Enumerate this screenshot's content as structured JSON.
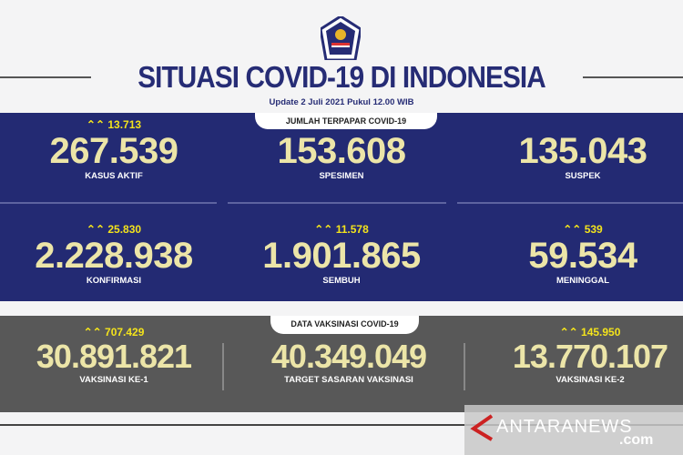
{
  "header": {
    "title": "SITUASI COVID-19 DI INDONESIA",
    "update": "Update 2 Juli  2021 Pukul 12.00 WIB"
  },
  "colors": {
    "panel_blue": "#232a73",
    "panel_gray": "#585858",
    "number": "#ece5a8",
    "delta": "#f3e31c"
  },
  "exposure": {
    "badge": "JUMLAH TERPAPAR COVID-19",
    "items": [
      {
        "delta": "13.713",
        "value": "267.539",
        "label": "KASUS AKTIF"
      },
      {
        "delta": "",
        "value": "153.608",
        "label": "SPESIMEN"
      },
      {
        "delta": "",
        "value": "135.043",
        "label": "SUSPEK"
      },
      {
        "delta": "25.830",
        "value": "2.228.938",
        "label": "KONFIRMASI"
      },
      {
        "delta": "11.578",
        "value": "1.901.865",
        "label": "SEMBUH"
      },
      {
        "delta": "539",
        "value": "59.534",
        "label": "MENINGGAL"
      }
    ]
  },
  "vaccination": {
    "badge": "DATA VAKSINASI COVID-19",
    "items": [
      {
        "delta": "707.429",
        "value": "30.891.821",
        "label": "VAKSINASI KE-1"
      },
      {
        "delta": "",
        "value": "40.349.049",
        "label": "TARGET SASARAN VAKSINASI"
      },
      {
        "delta": "145.950",
        "value": "13.770.107",
        "label": "VAKSINASI KE-2"
      }
    ]
  },
  "watermark": {
    "text": "ANTARANEWS",
    "suffix": ".com"
  },
  "icons": {
    "delta": "double-chevron-up-icon",
    "logo": "garuda-emblem"
  }
}
